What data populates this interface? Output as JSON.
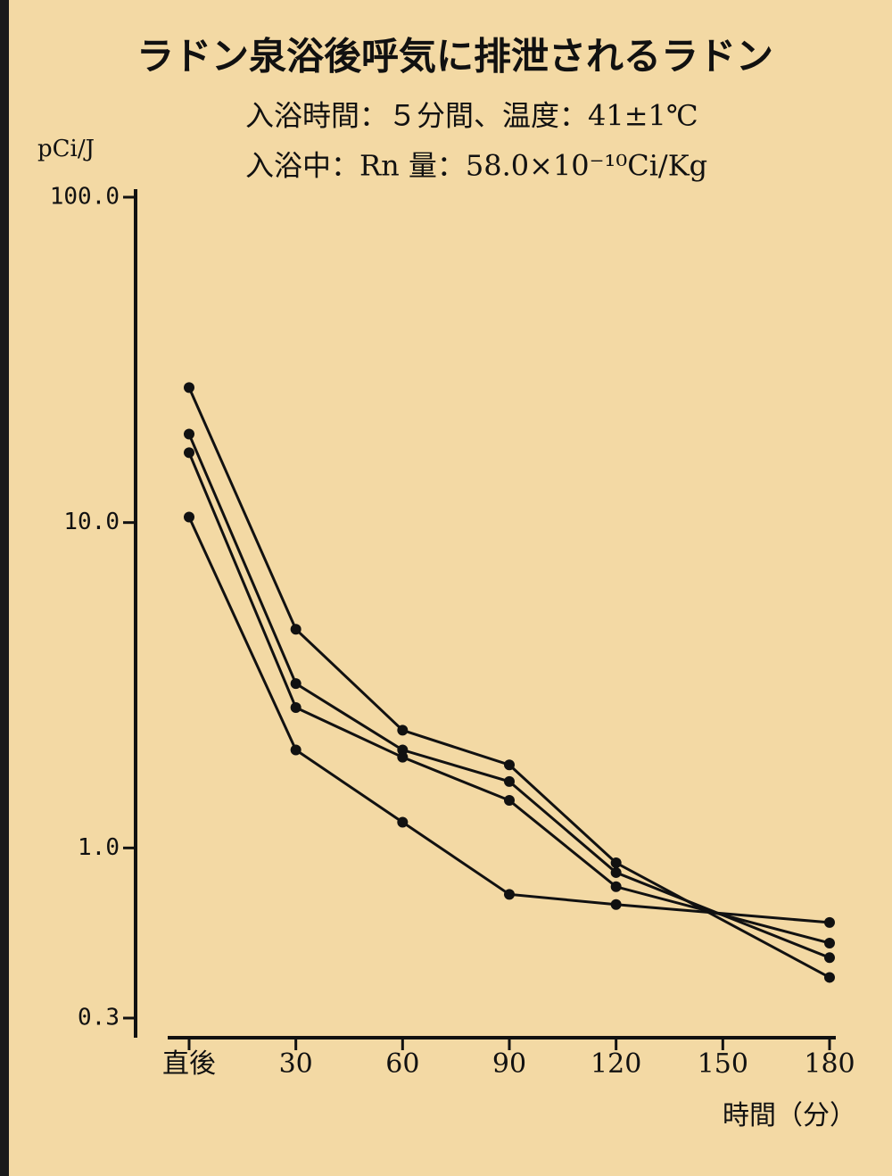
{
  "chart_data": {
    "type": "line",
    "title": "ラドン泉浴後呼気に排泄されるラドン",
    "subtitle": [
      "入浴時間：５分間、温度：41±1℃",
      "入浴中：Rn 量：58.0×10⁻¹⁰Ci/Kg"
    ],
    "y_label": "pCi/J",
    "x_label": "時間（分）",
    "log_y": true,
    "xlim": [
      0,
      180
    ],
    "xticks": [
      {
        "value": 0,
        "label": "直後"
      },
      30,
      60,
      90,
      120,
      150,
      180
    ],
    "ylim": [
      0.3,
      100
    ],
    "yticks": [
      {
        "value": 100,
        "label": "100.0"
      },
      {
        "value": 10,
        "label": "10.0"
      },
      {
        "value": 1,
        "label": "1.0"
      },
      0.3
    ],
    "x": [
      0,
      30,
      60,
      90,
      120,
      180
    ],
    "series": [
      {
        "color": "#111111",
        "values": [
          26,
          4.7,
          2.3,
          1.8,
          0.9,
          0.4
        ]
      },
      {
        "color": "#111111",
        "values": [
          18.7,
          3.2,
          2.0,
          1.6,
          0.84,
          0.46
        ]
      },
      {
        "color": "#111111",
        "values": [
          16.4,
          2.7,
          1.9,
          1.4,
          0.76,
          0.51
        ]
      },
      {
        "color": "#111111",
        "values": [
          10.4,
          2.0,
          1.2,
          0.72,
          0.67,
          0.59
        ]
      }
    ]
  }
}
